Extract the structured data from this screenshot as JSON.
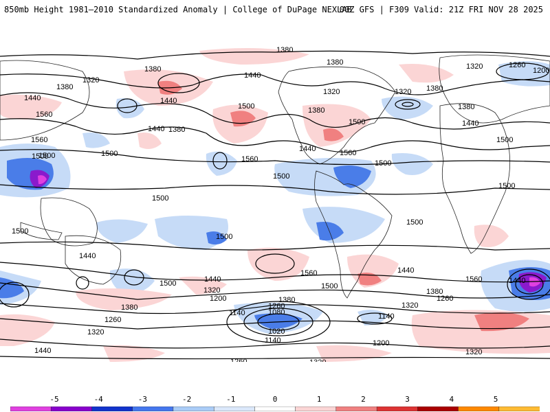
{
  "header": {
    "left_title": "850mb Height 1981–2010 Standardized Anomaly | College of DuPage NEXLAB",
    "right_title": "00Z GFS | F309 Valid: 21Z FRI NOV 28 2025"
  },
  "contour_labels": {
    "l1380a": "1380",
    "l1380b": "1380",
    "l1380c": "1380",
    "l1380d": "1380",
    "l1380e": "1380",
    "l1380f": "1380",
    "l1380g": "1380",
    "l1380h": "1380",
    "l1380i": "1380",
    "l1380j": "1380",
    "l1380k": "1380",
    "l1320a": "1320",
    "l1320b": "1320",
    "l1320c": "1320",
    "l1320d": "1320",
    "l1320e": "1320",
    "l1320f": "1320",
    "l1320g": "1320",
    "l1320h": "1320",
    "l1320i": "1320",
    "l1260a": "1260",
    "l1260b": "1260",
    "l1260c": "1260",
    "l1260d": "1260",
    "l1260e": "1260",
    "l1200a": "1200",
    "l1200b": "1200",
    "l1200c": "1200",
    "l1140a": "1140",
    "l1140b": "1140",
    "l1140c": "1140",
    "l1080": "1080",
    "l1020": "1020",
    "l1440a": "1440",
    "l1440b": "1440",
    "l1440c": "1440",
    "l1440d": "1440",
    "l1440e": "1440",
    "l1440f": "1440",
    "l1440g": "1440",
    "l1440h": "1440",
    "l1440i": "1440",
    "l1440j": "1440",
    "l1440k": "1440",
    "l1500a": "1500",
    "l1500b": "1500",
    "l1500c": "1500",
    "l1500d": "1500",
    "l1500e": "1500",
    "l1500f": "1500",
    "l1500g": "1500",
    "l1500h": "1500",
    "l1500i": "1500",
    "l1500j": "1500",
    "l1500k": "1500",
    "l1500l": "1500",
    "l1500m": "1500",
    "l1500n": "1500",
    "l1500o": "1500",
    "l1560a": "1560",
    "l1560b": "1560",
    "l1560c": "1560",
    "l1560d": "1560",
    "l1560e": "1560",
    "l1560f": "1560"
  },
  "colorbar": {
    "ticks": [
      "-5",
      "-4",
      "-3",
      "-2",
      "-1",
      "0",
      "1",
      "2",
      "3",
      "4",
      "5"
    ],
    "colors": [
      "#e040e0",
      "#8800cc",
      "#1133cc",
      "#4477ee",
      "#aaccf7",
      "#dbe8fb",
      "#ffffff",
      "#fbd5d5",
      "#f08080",
      "#dd3333",
      "#aa0000",
      "#ff8800",
      "#ffbb33"
    ]
  }
}
